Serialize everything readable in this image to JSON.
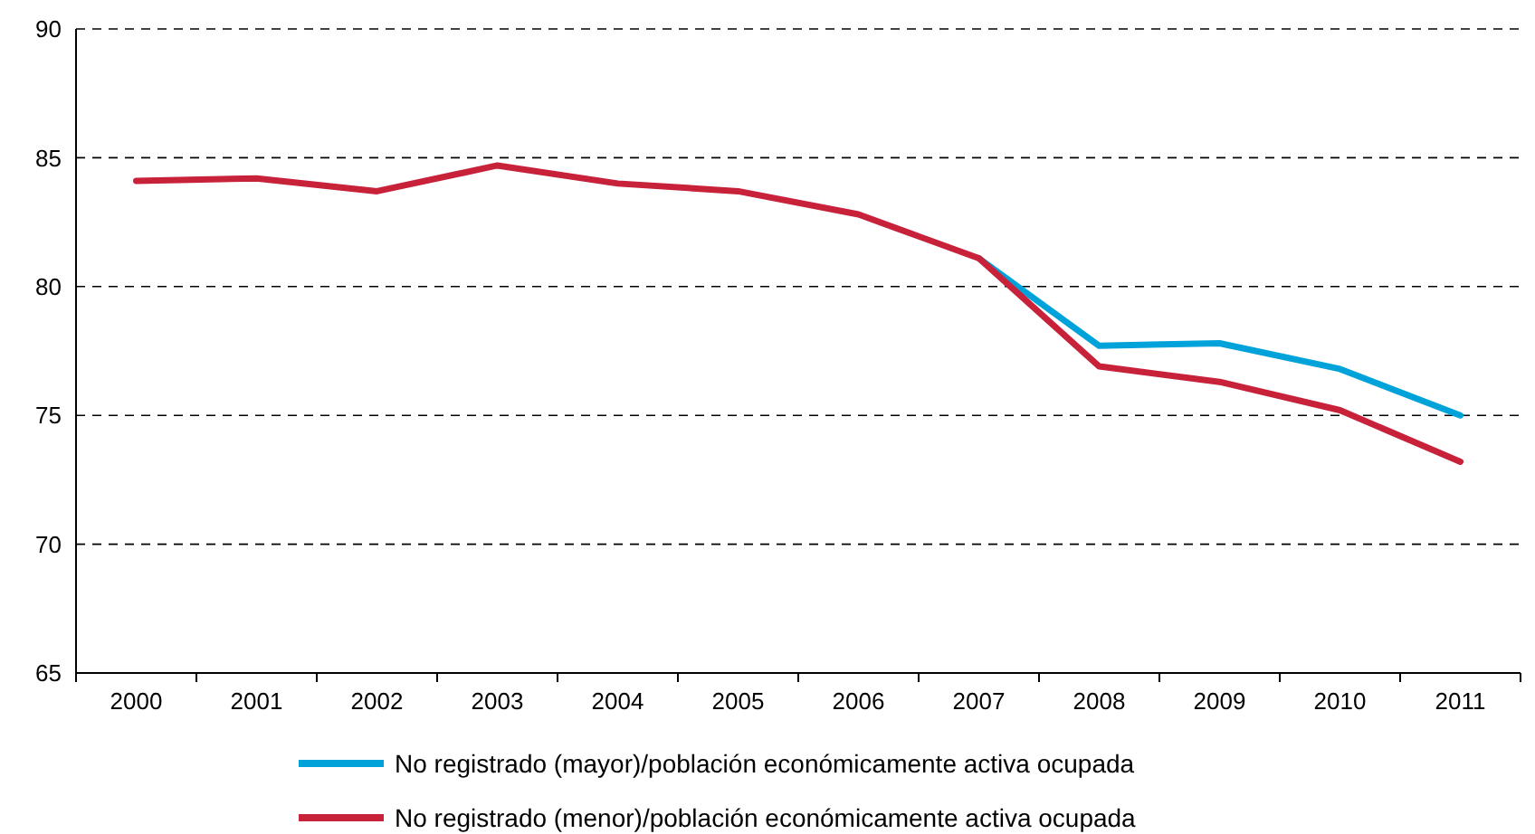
{
  "chart_data": {
    "type": "line",
    "categories": [
      "2000",
      "2001",
      "2002",
      "2003",
      "2004",
      "2005",
      "2006",
      "2007",
      "2008",
      "2009",
      "2010",
      "2011"
    ],
    "series": [
      {
        "name": "No registrado (mayor)/población económicamente activa ocupada",
        "color": "#00a3d9",
        "values": [
          null,
          null,
          null,
          null,
          null,
          null,
          null,
          81.1,
          77.7,
          77.8,
          76.8,
          75.0
        ]
      },
      {
        "name": "No registrado (menor)/población económicamente activa ocupada",
        "color": "#c8213a",
        "values": [
          84.1,
          84.2,
          83.7,
          84.7,
          84.0,
          83.7,
          82.8,
          81.1,
          76.9,
          76.3,
          75.2,
          73.2
        ]
      }
    ],
    "ylim": [
      65,
      90
    ],
    "yticks": [
      65,
      70,
      75,
      80,
      85,
      90
    ],
    "grid": "y",
    "legend": "bottom",
    "marker": "none",
    "line_style": "solid"
  }
}
